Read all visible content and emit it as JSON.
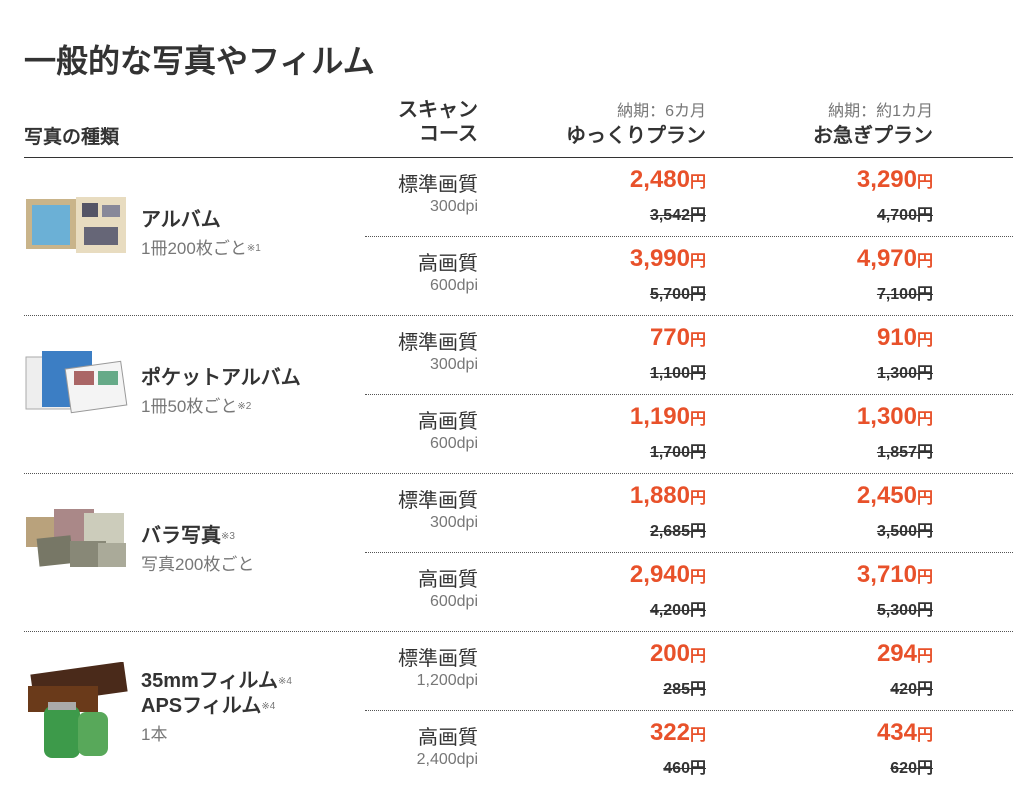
{
  "title": "一般的な写真やフィルム",
  "header": {
    "type": "写真の種類",
    "scan": [
      "スキャン",
      "コース"
    ],
    "slow_note": "納期：6カ月",
    "slow": "ゆっくりプラン",
    "fast_note": "納期：約1カ月",
    "fast": "お急ぎプラン"
  },
  "yen": "円",
  "groups": [
    {
      "name": [
        {
          "text": "アルバム"
        }
      ],
      "sub": "1冊200枚ごと",
      "sub_note": "※1",
      "rows": [
        {
          "quality": "標準画質",
          "dpi": "300dpi",
          "slow": {
            "sale": "2,480",
            "regular": "3,542"
          },
          "fast": {
            "sale": "3,290",
            "regular": "4,700"
          }
        },
        {
          "quality": "高画質",
          "dpi": "600dpi",
          "slow": {
            "sale": "3,990",
            "regular": "5,700"
          },
          "fast": {
            "sale": "4,970",
            "regular": "7,100"
          }
        }
      ]
    },
    {
      "name": [
        {
          "text": "ポケットアルバム"
        }
      ],
      "sub": "1冊50枚ごと",
      "sub_note": "※2",
      "rows": [
        {
          "quality": "標準画質",
          "dpi": "300dpi",
          "slow": {
            "sale": "770",
            "regular": "1,100"
          },
          "fast": {
            "sale": "910",
            "regular": "1,300"
          }
        },
        {
          "quality": "高画質",
          "dpi": "600dpi",
          "slow": {
            "sale": "1,190",
            "regular": "1,700"
          },
          "fast": {
            "sale": "1,300",
            "regular": "1,857"
          }
        }
      ]
    },
    {
      "name": [
        {
          "text": "バラ写真",
          "note": "※3"
        }
      ],
      "sub": "写真200枚ごと",
      "rows": [
        {
          "quality": "標準画質",
          "dpi": "300dpi",
          "slow": {
            "sale": "1,880",
            "regular": "2,685"
          },
          "fast": {
            "sale": "2,450",
            "regular": "3,500"
          }
        },
        {
          "quality": "高画質",
          "dpi": "600dpi",
          "slow": {
            "sale": "2,940",
            "regular": "4,200"
          },
          "fast": {
            "sale": "3,710",
            "regular": "5,300"
          }
        }
      ]
    },
    {
      "name": [
        {
          "text": "35mmフィルム",
          "note": "※4"
        },
        {
          "text": "APSフィルム",
          "note": "※4"
        }
      ],
      "sub": "1本",
      "rows": [
        {
          "quality": "標準画質",
          "dpi": "1,200dpi",
          "slow": {
            "sale": "200",
            "regular": "285"
          },
          "fast": {
            "sale": "294",
            "regular": "420"
          }
        },
        {
          "quality": "高画質",
          "dpi": "2,400dpi",
          "slow": {
            "sale": "322",
            "regular": "460"
          },
          "fast": {
            "sale": "434",
            "regular": "620"
          }
        }
      ]
    }
  ]
}
